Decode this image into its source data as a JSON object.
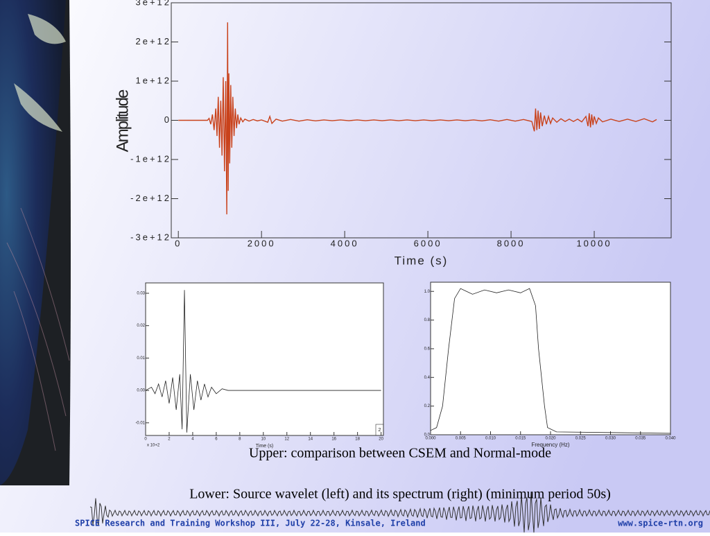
{
  "chart_data": [
    {
      "type": "line",
      "xlabel": "Time (s)",
      "ylabel": "Amplitude",
      "color": "#c9421b",
      "x": [
        0,
        700,
        740,
        780,
        820,
        860,
        900,
        930,
        960,
        990,
        1020,
        1050,
        1080,
        1110,
        1140,
        1165,
        1185,
        1200,
        1215,
        1235,
        1260,
        1285,
        1310,
        1340,
        1370,
        1400,
        1430,
        1460,
        1500,
        1550,
        1600,
        1700,
        1800,
        1900,
        2000,
        2150,
        2200,
        2250,
        2350,
        2500,
        2700,
        2900,
        3100,
        3300,
        3500,
        3700,
        3900,
        4100,
        4300,
        4500,
        4700,
        4900,
        5100,
        5300,
        5500,
        5700,
        5900,
        6100,
        6300,
        6500,
        6700,
        6900,
        7100,
        7300,
        7500,
        7700,
        7900,
        8100,
        8300,
        8500,
        8560,
        8590,
        8620,
        8650,
        8680,
        8710,
        8750,
        8800,
        8850,
        8900,
        8950,
        9000,
        9100,
        9200,
        9300,
        9400,
        9500,
        9600,
        9700,
        9800,
        9850,
        9880,
        9910,
        9940,
        9970,
        10000,
        10050,
        10100,
        10200,
        10400,
        10600,
        10800,
        11000,
        11200,
        11400,
        11500
      ],
      "values": [
        0,
        0,
        50000000000.0,
        -100000000000.0,
        150000000000.0,
        -250000000000.0,
        300000000000.0,
        -400000000000.0,
        600000000000.0,
        -700000000000.0,
        500000000000.0,
        -900000000000.0,
        1100000000000.0,
        -1300000000000.0,
        1000000000000.0,
        -2400000000000.0,
        2500000000000.0,
        -1800000000000.0,
        1200000000000.0,
        -1100000000000.0,
        900000000000.0,
        -700000000000.0,
        600000000000.0,
        -400000000000.0,
        300000000000.0,
        -200000000000.0,
        150000000000.0,
        -100000000000.0,
        60000000000.0,
        -40000000000.0,
        30000000000.0,
        -20000000000.0,
        20000000000.0,
        -15000000000.0,
        10000000000.0,
        -50000000000.0,
        100000000000.0,
        -80000000000.0,
        30000000000.0,
        -20000000000.0,
        20000000000.0,
        -20000000000.0,
        15000000000.0,
        -15000000000.0,
        10000000000.0,
        -10000000000.0,
        10000000000.0,
        -10000000000.0,
        10000000000.0,
        -10000000000.0,
        10000000000.0,
        -10000000000.0,
        10000000000.0,
        -10000000000.0,
        10000000000.0,
        -10000000000.0,
        10000000000.0,
        -10000000000.0,
        10000000000.0,
        -10000000000.0,
        10000000000.0,
        -10000000000.0,
        10000000000.0,
        -15000000000.0,
        15000000000.0,
        -20000000000.0,
        20000000000.0,
        -20000000000.0,
        20000000000.0,
        -30000000000.0,
        -280000000000.0,
        300000000000.0,
        -250000000000.0,
        250000000000.0,
        -220000000000.0,
        200000000000.0,
        -150000000000.0,
        120000000000.0,
        -100000000000.0,
        100000000000.0,
        -80000000000.0,
        60000000000.0,
        -50000000000.0,
        40000000000.0,
        -30000000000.0,
        30000000000.0,
        -30000000000.0,
        30000000000.0,
        -40000000000.0,
        100000000000.0,
        -150000000000.0,
        180000000000.0,
        -180000000000.0,
        150000000000.0,
        -120000000000.0,
        100000000000.0,
        -80000000000.0,
        60000000000.0,
        -40000000000.0,
        30000000000.0,
        -30000000000.0,
        30000000000.0,
        -30000000000.0,
        40000000000.0,
        -40000000000.0,
        20000000000.0
      ],
      "xlim": [
        -170,
        11850
      ],
      "xticks": [
        0,
        2000,
        4000,
        6000,
        8000,
        10000
      ],
      "ylim": [
        -3000000000000.0,
        3000000000000.0
      ],
      "yticks": [
        {
          "value": -3000000000000.0,
          "label": "-3e+12"
        },
        {
          "value": -2000000000000.0,
          "label": "-2e+12"
        },
        {
          "value": -1000000000000.0,
          "label": "-1e+12"
        },
        0,
        {
          "value": 1000000000000.0,
          "label": "1e+12"
        },
        {
          "value": 2000000000000.0,
          "label": "2e+12"
        },
        {
          "value": 3000000000000.0,
          "label": "3e+12"
        }
      ],
      "grid": false
    },
    {
      "type": "line",
      "xlabel": "Time (s)",
      "color": "#222222",
      "annotations": [
        "x 10+2",
        "2"
      ],
      "x": [
        0,
        0.5,
        0.8,
        1.1,
        1.4,
        1.7,
        2.0,
        2.3,
        2.6,
        2.9,
        3.1,
        3.3,
        3.5,
        3.8,
        4.1,
        4.4,
        4.7,
        5.0,
        5.3,
        5.6,
        6.0,
        6.5,
        7,
        20
      ],
      "values": [
        0,
        0.001,
        -0.001,
        0.002,
        -0.002,
        0.003,
        -0.004,
        0.004,
        -0.006,
        0.005,
        -0.012,
        0.031,
        -0.013,
        0.005,
        -0.006,
        0.003,
        -0.003,
        0.002,
        -0.002,
        0.001,
        -0.001,
        0.0005,
        0,
        0
      ],
      "xlim": [
        0,
        20.2
      ],
      "xticks": [
        0,
        2,
        4,
        6,
        8,
        10,
        12,
        14,
        16,
        18,
        20
      ],
      "ylim": [
        -0.0139,
        0.0332
      ],
      "yticks": [
        -0.01,
        {
          "value": 0,
          "label": "0.00"
        },
        0.01,
        0.02,
        0.03
      ],
      "grid": false
    },
    {
      "type": "line",
      "xlabel": "Frequency (Hz)",
      "color": "#222222",
      "x": [
        0,
        0.001,
        0.002,
        0.003,
        0.004,
        0.005,
        0.006,
        0.007,
        0.009,
        0.011,
        0.013,
        0.015,
        0.0165,
        0.0175,
        0.018,
        0.019,
        0.0195,
        0.021,
        0.04
      ],
      "values": [
        0.03,
        0.05,
        0.2,
        0.6,
        0.95,
        1.02,
        1.0,
        0.98,
        1.01,
        0.99,
        1.01,
        0.99,
        1.02,
        0.9,
        0.6,
        0.2,
        0.05,
        0.02,
        0.01
      ],
      "xlim": [
        0,
        0.04
      ],
      "xticks": [
        {
          "value": 0,
          "label": "0.000"
        },
        {
          "value": 0.005,
          "label": "0.005"
        },
        {
          "value": 0.01,
          "label": "0.010"
        },
        {
          "value": 0.015,
          "label": "0.015"
        },
        {
          "value": 0.02,
          "label": "0.020"
        },
        {
          "value": 0.025,
          "label": "0.025"
        },
        {
          "value": 0.03,
          "label": "0.030"
        },
        {
          "value": 0.035,
          "label": "0.035"
        },
        {
          "value": 0.04,
          "label": "0.040"
        }
      ],
      "ylim": [
        0,
        1.064
      ],
      "yticks": [
        {
          "value": 0,
          "label": "0.0"
        },
        0.2,
        0.4,
        0.6,
        0.8,
        {
          "value": 1,
          "label": "1.0"
        }
      ],
      "grid": false
    }
  ],
  "captions": [
    "Upper: comparison between CSEM and Normal-mode",
    "Lower: Source wavelet (left) and its spectrum (right) (minimum period 50s)"
  ],
  "footer": {
    "left": "SPICE Research and Training Workshop III, July 22-28, Kinsale, Ireland",
    "right": "www.spice-rtn.org"
  }
}
